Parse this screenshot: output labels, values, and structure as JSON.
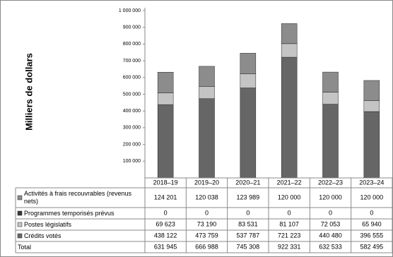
{
  "chart_data": {
    "type": "stacked-bar",
    "y_label": "Milliers de dollars",
    "categories": [
      "2018–19",
      "2019–20",
      "2020–21",
      "2021–22",
      "2022–23",
      "2023–24"
    ],
    "series": [
      {
        "name": "Activités à frais recouvrables (revenus nets)",
        "color": "#8c8c8c",
        "values": [
          124201,
          120038,
          123989,
          120000,
          120000,
          120000
        ],
        "value_labels": [
          "124 201",
          "120 038",
          "123 989",
          "120 000",
          "120 000",
          "120 000"
        ]
      },
      {
        "name": "Programmes temporisés prévus",
        "color": "#3a3a3a",
        "values": [
          0,
          0,
          0,
          0,
          0,
          0
        ]
      },
      {
        "name": "Postes législatifs",
        "color": "#c4c4c4",
        "values": [
          69623,
          73190,
          83531,
          81107,
          72053,
          65940
        ],
        "value_labels": [
          "69 623",
          "73 190",
          "83 531",
          "81 107",
          "72 053",
          "65 940"
        ]
      },
      {
        "name": "Crédits votés",
        "color": "#666666",
        "values": [
          438122,
          473759,
          537787,
          721223,
          440480,
          396555
        ],
        "value_labels": [
          "438 122",
          "473 759",
          "537 787",
          "721 223",
          "440 480",
          "396 555"
        ]
      }
    ],
    "total": {
      "name": "Total",
      "values": [
        631945,
        666988,
        745308,
        922331,
        632533,
        582495
      ],
      "value_labels": [
        "631 945",
        "666 988",
        "745 308",
        "922 331",
        "632 533",
        "582 495"
      ]
    },
    "ylim": [
      0,
      1000000
    ],
    "yticks": [
      {
        "value": 100000,
        "label": "100 000"
      },
      {
        "value": 200000,
        "label": "200 000"
      },
      {
        "value": 300000,
        "label": "300 000"
      },
      {
        "value": 400000,
        "label": "400 000"
      },
      {
        "value": 500000,
        "label": "500 000"
      },
      {
        "value": 600000,
        "label": "600 000"
      },
      {
        "value": 700000,
        "label": "700 000"
      },
      {
        "value": 800000,
        "label": "800 000"
      },
      {
        "value": 900000,
        "label": "900 000"
      },
      {
        "value": 1000000,
        "label": "1 000 000"
      }
    ]
  }
}
